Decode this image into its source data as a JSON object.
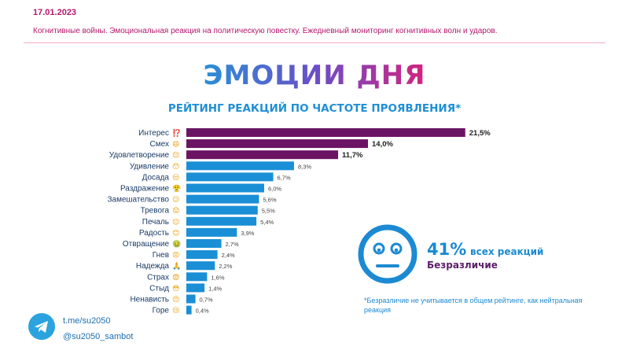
{
  "header": {
    "date": "17.01.2023",
    "subtitle": "Когнитивные войны. Эмоциональная реакция на политическую повестку. Ежедневный мониторинг когнитивных волн и ударов."
  },
  "main_title": "ЭМОЦИИ ДНЯ",
  "colors": {
    "top": "#6b1464",
    "other": "#1b8fd6",
    "accent": "#b5176e"
  },
  "chart_data": {
    "type": "bar",
    "orientation": "horizontal",
    "title": "РЕЙТИНГ РЕАКЦИЙ ПО ЧАСТОТЕ ПРОЯВЛЕНИЯ*",
    "categories": [
      "Интерес",
      "Смех",
      "Удовлетворение",
      "Удивление",
      "Досада",
      "Раздражение",
      "Замешательство",
      "Тревога",
      "Печаль",
      "Радость",
      "Отвращение",
      "Гнев",
      "Надежда",
      "Страх",
      "Стыд",
      "Ненависть",
      "Горе"
    ],
    "values": [
      21.5,
      14.0,
      11.7,
      8.3,
      6.7,
      6.0,
      5.6,
      5.5,
      5.4,
      3.9,
      2.7,
      2.4,
      2.2,
      1.6,
      1.4,
      0.7,
      0.4
    ],
    "value_labels": [
      "21,5%",
      "14,0%",
      "11,7%",
      "8,3%",
      "6,7%",
      "6,0%",
      "5,6%",
      "5,5%",
      "5,4%",
      "3,9%",
      "2,7%",
      "2,4%",
      "2,2%",
      "1,6%",
      "1,4%",
      "0,7%",
      "0,4%"
    ],
    "emoji": [
      "⁉️",
      "😄",
      "😌",
      "😯",
      "😒",
      "😤",
      "😕",
      "😟",
      "😔",
      "😊",
      "🤢",
      "😡",
      "🙏",
      "😨",
      "😳",
      "😠",
      "😢"
    ],
    "highlighted_top": 3,
    "xlabel": "",
    "ylabel": ""
  },
  "callout": {
    "percent": "41%",
    "text": "всех реакций",
    "label": "Безразличие",
    "icon": "neutral-face-icon"
  },
  "footnote": "*Безразличие не учитывается в общем рейтинге, как нейтральная реакция",
  "footer": {
    "icon": "telegram-icon",
    "link": "t.me/su2050",
    "handle": "@su2050_sambot"
  }
}
